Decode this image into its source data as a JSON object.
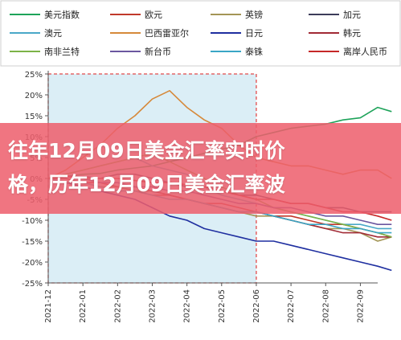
{
  "banner": {
    "line1": "往年12月09日美金汇率实时价",
    "line2": "格，历年12月09日美金汇率波"
  },
  "chart_data": {
    "type": "line",
    "title": "",
    "xlabel": "",
    "ylabel": "",
    "ylim": [
      -25,
      25
    ],
    "yticks": [
      "25%",
      "20%",
      "15%",
      "10%",
      "5%",
      "0%",
      "-5%",
      "-10%",
      "-15%",
      "-20%",
      "-25%"
    ],
    "xticks": [
      "2021-12",
      "2022-01",
      "2022-02",
      "2022-03",
      "2022-04",
      "2022-05",
      "2022-06",
      "2022-07",
      "2022-08",
      "2022-09"
    ],
    "highlight": {
      "from": "2021-12",
      "to": "2022-06",
      "color": "#dbeef6"
    },
    "legend_position": "top",
    "series": [
      {
        "name": "美元指数",
        "color": "#1ea35a",
        "x": [
          0,
          0.5,
          1,
          1.5,
          2,
          2.5,
          3,
          3.5,
          4,
          4.5,
          5,
          5.5,
          6,
          6.5,
          7,
          7.5,
          8,
          8.5,
          9,
          9.5,
          9.9
        ],
        "values": [
          0,
          0.5,
          1,
          1.2,
          2,
          2.5,
          3,
          4,
          5,
          6,
          7,
          8,
          10,
          11,
          12,
          12.5,
          13,
          14,
          14.5,
          17,
          16
        ]
      },
      {
        "name": "欧元",
        "color": "#c0392b",
        "x": [
          0,
          0.5,
          1,
          1.5,
          2,
          2.5,
          3,
          3.5,
          4,
          4.5,
          5,
          5.5,
          6,
          6.5,
          7,
          7.5,
          8,
          8.5,
          9,
          9.5,
          9.9
        ],
        "values": [
          0,
          -1,
          -1,
          -2,
          -2,
          -3,
          -4,
          -4,
          -5,
          -6,
          -6,
          -7,
          -8,
          -9,
          -9,
          -10,
          -11,
          -11,
          -12,
          -13,
          -14
        ]
      },
      {
        "name": "英镑",
        "color": "#a39555",
        "x": [
          0,
          0.5,
          1,
          1.5,
          2,
          2.5,
          3,
          3.5,
          4,
          4.5,
          5,
          5.5,
          6,
          6.5,
          7,
          7.5,
          8,
          8.5,
          9,
          9.5,
          9.9
        ],
        "values": [
          0,
          -1,
          -1,
          -2,
          -2,
          -3,
          -3,
          -4,
          -5,
          -6,
          -7,
          -8,
          -9,
          -9,
          -10,
          -11,
          -12,
          -12,
          -13,
          -15,
          -14
        ]
      },
      {
        "name": "加元",
        "color": "#3c3c5a",
        "x": [
          0,
          0.5,
          1,
          1.5,
          2,
          2.5,
          3,
          3.5,
          4,
          4.5,
          5,
          5.5,
          6,
          6.5,
          7,
          7.5,
          8,
          8.5,
          9,
          9.5,
          9.9
        ],
        "values": [
          0,
          0.5,
          0.5,
          0,
          1,
          1,
          0,
          -1,
          -2,
          -2,
          -3,
          -4,
          -4,
          -5,
          -6,
          -6,
          -7,
          -7,
          -8,
          -8,
          -8
        ]
      },
      {
        "name": "澳元",
        "color": "#4aa8c8",
        "x": [
          0,
          0.5,
          1,
          1.5,
          2,
          2.5,
          3,
          3.5,
          4,
          4.5,
          5,
          5.5,
          6,
          6.5,
          7,
          7.5,
          8,
          8.5,
          9,
          9.5,
          9.9
        ],
        "values": [
          0,
          1,
          2,
          3,
          4,
          5,
          3,
          2,
          1,
          -2,
          -4,
          -5,
          -6,
          -7,
          -8,
          -9,
          -10,
          -11,
          -11,
          -12,
          -12
        ]
      },
      {
        "name": "巴西雷亚尔",
        "color": "#d6893a",
        "x": [
          0,
          0.5,
          1,
          1.5,
          2,
          2.5,
          3,
          3.5,
          4,
          4.5,
          5,
          5.5,
          6,
          6.5,
          7,
          7.5,
          8,
          8.5,
          9,
          9.5,
          9.9
        ],
        "values": [
          0,
          2,
          5,
          8,
          12,
          15,
          19,
          21,
          17,
          14,
          12,
          8,
          5,
          4,
          3,
          3,
          2,
          1,
          2,
          2,
          0
        ]
      },
      {
        "name": "日元",
        "color": "#1f2fa0",
        "x": [
          0,
          0.5,
          1,
          1.5,
          2,
          2.5,
          3,
          3.5,
          4,
          4.5,
          5,
          5.5,
          6,
          6.5,
          7,
          7.5,
          8,
          8.5,
          9,
          9.5,
          9.9
        ],
        "values": [
          0,
          -1,
          -2,
          -3,
          -4,
          -5,
          -7,
          -9,
          -10,
          -12,
          -13,
          -14,
          -15,
          -15,
          -16,
          -17,
          -18,
          -19,
          -20,
          -21,
          -22
        ]
      },
      {
        "name": "韩元",
        "color": "#a12a35",
        "x": [
          0,
          0.5,
          1,
          1.5,
          2,
          2.5,
          3,
          3.5,
          4,
          4.5,
          5,
          5.5,
          6,
          6.5,
          7,
          7.5,
          8,
          8.5,
          9,
          9.5,
          9.9
        ],
        "values": [
          0,
          0,
          -1,
          -1,
          -2,
          -2,
          -3,
          -4,
          -5,
          -6,
          -7,
          -8,
          -8,
          -9,
          -10,
          -11,
          -12,
          -13,
          -13,
          -14,
          -14
        ]
      },
      {
        "name": "南非兰特",
        "color": "#7cb347",
        "x": [
          0,
          0.5,
          1,
          1.5,
          2,
          2.5,
          3,
          3.5,
          4,
          4.5,
          5,
          5.5,
          6,
          6.5,
          7,
          7.5,
          8,
          8.5,
          9,
          9.5,
          9.9
        ],
        "values": [
          0,
          1,
          2,
          3,
          4,
          5,
          6,
          4,
          2,
          0,
          -2,
          -4,
          -5,
          -7,
          -8,
          -9,
          -10,
          -11,
          -12,
          -13,
          -14
        ]
      },
      {
        "name": "新台币",
        "color": "#6b57a0",
        "x": [
          0,
          0.5,
          1,
          1.5,
          2,
          2.5,
          3,
          3.5,
          4,
          4.5,
          5,
          5.5,
          6,
          6.5,
          7,
          7.5,
          8,
          8.5,
          9,
          9.5,
          9.9
        ],
        "values": [
          0,
          0.5,
          0,
          -1,
          -1,
          -2,
          -2,
          -3,
          -3,
          -4,
          -5,
          -6,
          -6,
          -7,
          -7,
          -8,
          -9,
          -9,
          -10,
          -11,
          -11
        ]
      },
      {
        "name": "泰铢",
        "color": "#3aa6c6",
        "x": [
          0,
          0.5,
          1,
          1.5,
          2,
          2.5,
          3,
          3.5,
          4,
          4.5,
          5,
          5.5,
          6,
          6.5,
          7,
          7.5,
          8,
          8.5,
          9,
          9.5,
          9.9
        ],
        "values": [
          0,
          -1,
          -1,
          -2,
          -3,
          -3,
          -4,
          -5,
          -5,
          -6,
          -7,
          -8,
          -8,
          -9,
          -10,
          -11,
          -11,
          -12,
          -12,
          -13,
          -13
        ]
      },
      {
        "name": "离岸人民币",
        "color": "#c62828",
        "x": [
          0,
          0.5,
          1,
          1.5,
          2,
          2.5,
          3,
          3.5,
          4,
          4.5,
          5,
          5.5,
          6,
          6.5,
          7,
          7.5,
          8,
          8.5,
          9,
          9.5,
          9.9
        ],
        "values": [
          0,
          0.5,
          0,
          0,
          0,
          -0.5,
          -1,
          -1,
          -1.5,
          -2,
          -3,
          -4,
          -5,
          -5,
          -6,
          -6,
          -7,
          -8,
          -8,
          -9,
          -10
        ]
      }
    ]
  }
}
